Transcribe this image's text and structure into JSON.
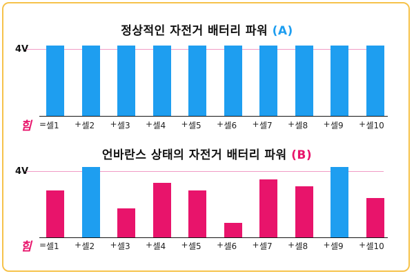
{
  "colors": {
    "frame": "#f6c24a",
    "blue": "#1e9ef0",
    "pink": "#e8146b",
    "guide": "#f19ac5"
  },
  "panelA": {
    "title": "정상적인 자전거 배터리 파워",
    "tag": "(A)",
    "voltage_label": "4V",
    "him": "힘",
    "equals": "=",
    "plus": "+",
    "cells": [
      "셀1",
      "셀2",
      "셀3",
      "셀4",
      "셀5",
      "셀6",
      "셀7",
      "셀8",
      "셀9",
      "셀10"
    ],
    "bar_levels": [
      1,
      1,
      1,
      1,
      1,
      1,
      1,
      1,
      1,
      1
    ],
    "bar_colors": [
      "blue",
      "blue",
      "blue",
      "blue",
      "blue",
      "blue",
      "blue",
      "blue",
      "blue",
      "blue"
    ]
  },
  "panelB": {
    "title": "언바란스 상태의 자전거 배터리 파워",
    "tag": "(B)",
    "voltage_label": "4V",
    "him": "힘",
    "equals": "=",
    "plus": "+",
    "cells": [
      "셀1",
      "셀2",
      "셀3",
      "셀4",
      "셀5",
      "셀6",
      "셀7",
      "셀8",
      "셀9",
      "셀10"
    ],
    "bar_levels": [
      0.68,
      1.02,
      0.42,
      0.79,
      0.68,
      0.21,
      0.84,
      0.74,
      1.02,
      0.57
    ],
    "bar_colors": [
      "pink",
      "blue",
      "pink",
      "pink",
      "pink",
      "pink",
      "pink",
      "pink",
      "blue",
      "pink"
    ]
  }
}
